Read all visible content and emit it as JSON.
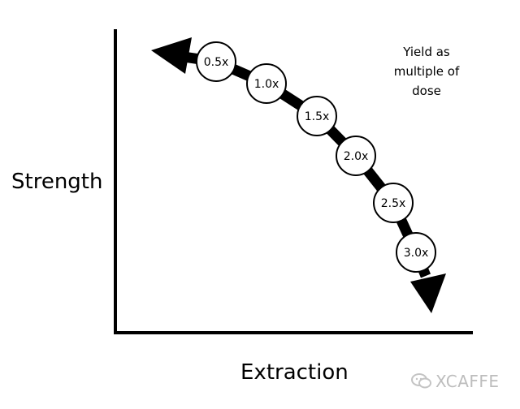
{
  "diagram": {
    "y_axis_label": "Strength",
    "x_axis_label": "Extraction",
    "legend_note": "Yield as multiple of dose",
    "nodes": [
      "0.5x",
      "1.0x",
      "1.5x",
      "2.0x",
      "2.5x",
      "3.0x"
    ]
  },
  "watermark": {
    "text": "XCAFFE",
    "icon": "wechat-icon"
  }
}
